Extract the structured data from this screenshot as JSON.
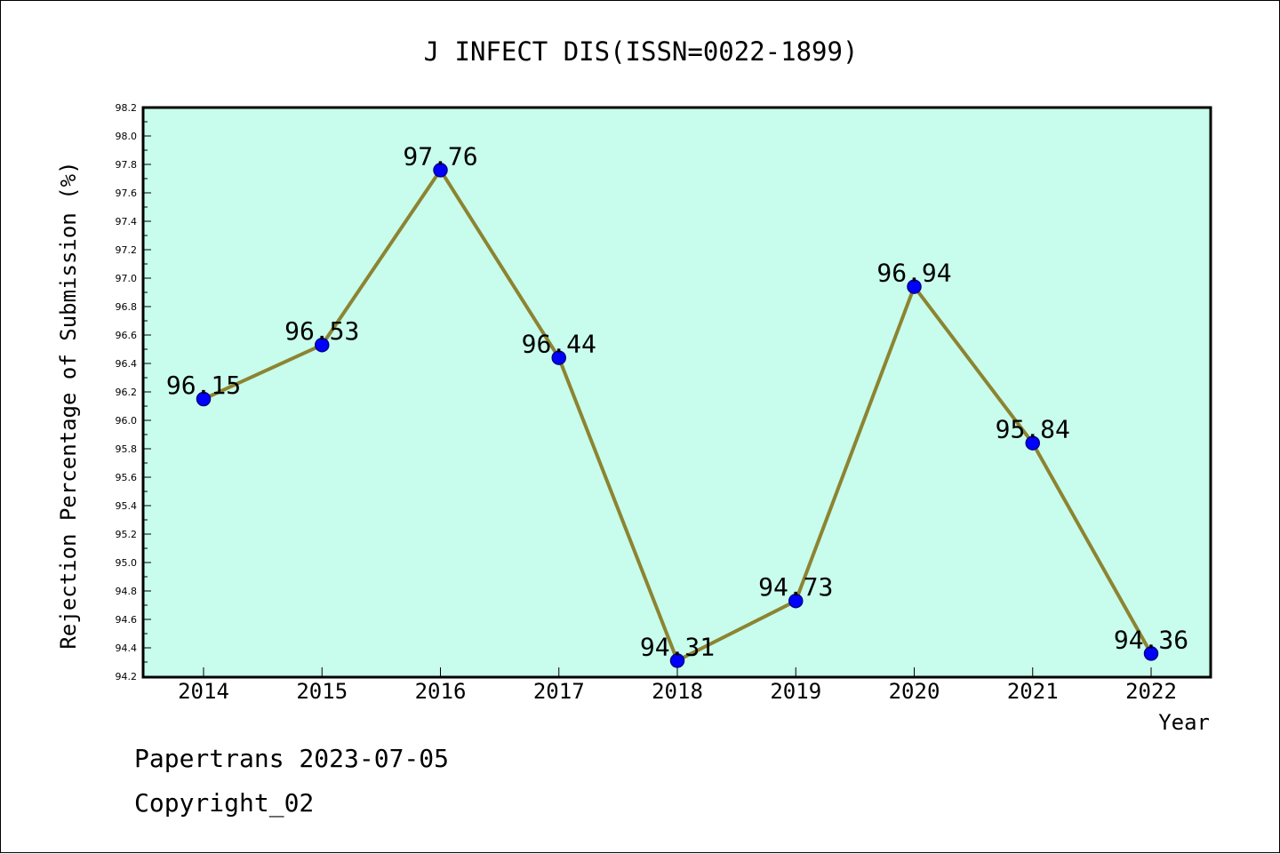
{
  "chart_data": {
    "type": "line",
    "title": "J INFECT DIS(ISSN=0022-1899)",
    "xlabel": "Year",
    "ylabel": "Rejection Percentage of Submission (%)",
    "categories": [
      "2014",
      "2015",
      "2016",
      "2017",
      "2018",
      "2019",
      "2020",
      "2021",
      "2022"
    ],
    "series": [
      {
        "values": [
          96.15,
          96.53,
          97.76,
          96.44,
          94.31,
          94.73,
          96.94,
          95.84,
          94.36
        ],
        "data_labels": [
          "96.15",
          "96.53",
          "97.76",
          "96.44",
          "94.31",
          "94.73",
          "96.94",
          "95.84",
          "94.36"
        ]
      }
    ],
    "ylim": [
      94.2,
      98.2
    ],
    "yticks": [
      "94.2",
      "94.4",
      "94.6",
      "94.8",
      "95.0",
      "95.2",
      "95.4",
      "95.6",
      "95.8",
      "96.0",
      "96.2",
      "96.4",
      "96.6",
      "96.8",
      "97.0",
      "97.2",
      "97.4",
      "97.6",
      "97.8",
      "98.0",
      "98.2"
    ],
    "grid": false,
    "colors": {
      "plot_background": "#c8fcec",
      "line": "#8c8431",
      "marker": "#0000ff",
      "marker_edge": "#00008b"
    }
  },
  "footer": {
    "line1": "Papertrans 2023-07-05",
    "line2": "Copyright_02"
  }
}
